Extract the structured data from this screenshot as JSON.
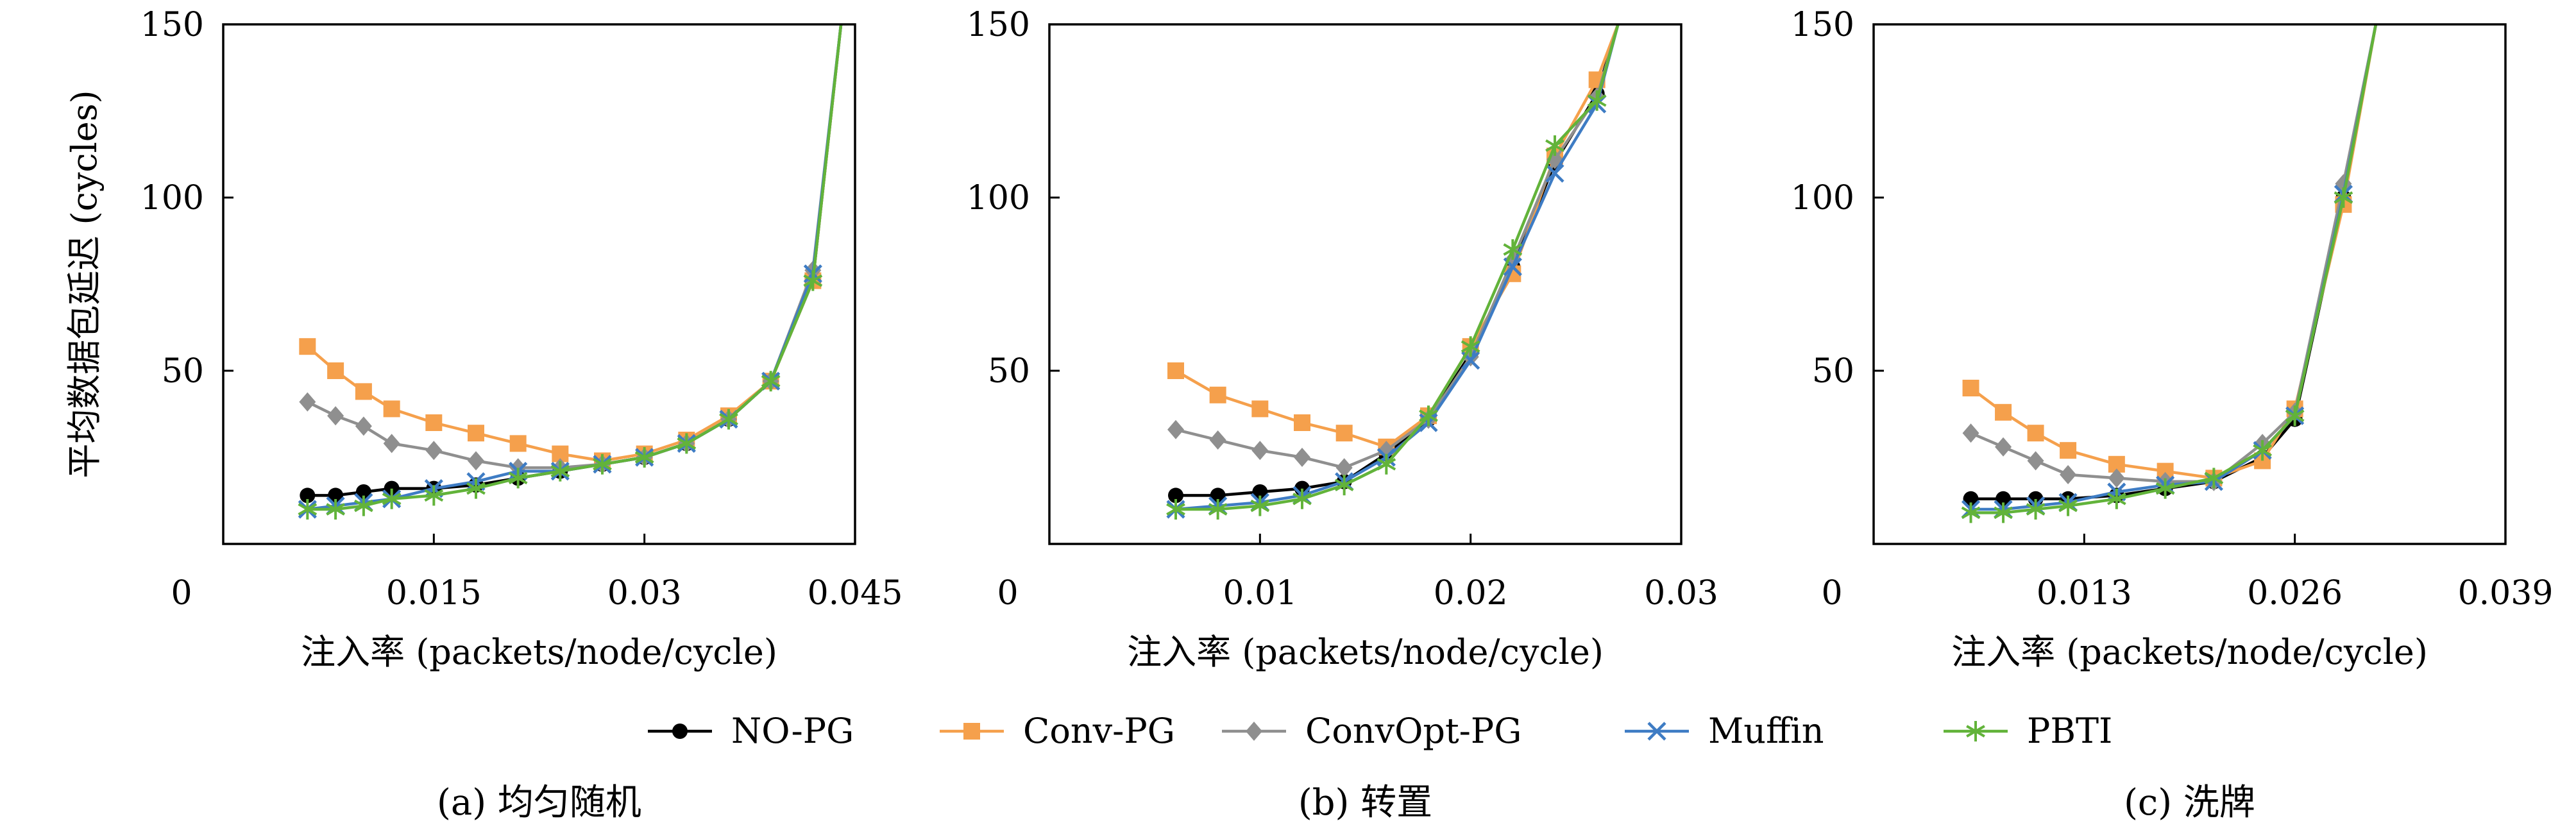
{
  "figure": {
    "legend": [
      {
        "name": "NO-PG",
        "color": "#000000",
        "marker": "circle"
      },
      {
        "name": "Conv-PG",
        "color": "#F5A04C",
        "marker": "square"
      },
      {
        "name": "ConvOpt-PG",
        "color": "#8F8F8F",
        "marker": "diamond"
      },
      {
        "name": "Muffin",
        "color": "#3E7CC4",
        "marker": "x"
      },
      {
        "name": "PBTI",
        "color": "#62B33A",
        "marker": "star"
      }
    ]
  },
  "chart_data": [
    {
      "type": "line",
      "caption": "(a) 均匀随机",
      "xlabel": "注入率 (packets/node/cycle)",
      "ylabel": "平均数据包延迟 (cycles)",
      "xlim": [
        0,
        0.045
      ],
      "ylim": [
        0,
        150
      ],
      "xticks": [
        0,
        0.015,
        0.03,
        0.045
      ],
      "xtick_labels": [
        "0",
        "0.015",
        "0.03",
        "0.045"
      ],
      "yticks": [
        50,
        100,
        150
      ],
      "ytick_labels": [
        "50",
        "100",
        "150"
      ],
      "series": [
        {
          "name": "NO-PG",
          "x": [
            0.006,
            0.008,
            0.01,
            0.012,
            0.015,
            0.018,
            0.021,
            0.024,
            0.027,
            0.03,
            0.033,
            0.036,
            0.039,
            0.042,
            0.044
          ],
          "y": [
            14,
            14,
            15,
            16,
            16,
            17,
            19,
            21,
            23,
            25,
            29,
            36,
            47,
            76,
            150
          ]
        },
        {
          "name": "Conv-PG",
          "x": [
            0.006,
            0.008,
            0.01,
            0.012,
            0.015,
            0.018,
            0.021,
            0.024,
            0.027,
            0.03,
            0.033,
            0.036,
            0.039,
            0.042,
            0.044
          ],
          "y": [
            57,
            50,
            44,
            39,
            35,
            32,
            29,
            26,
            24,
            26,
            30,
            37,
            47,
            76,
            150
          ]
        },
        {
          "name": "ConvOpt-PG",
          "x": [
            0.006,
            0.008,
            0.01,
            0.012,
            0.015,
            0.018,
            0.021,
            0.024,
            0.027,
            0.03,
            0.033,
            0.036,
            0.039,
            0.042,
            0.044
          ],
          "y": [
            41,
            37,
            34,
            29,
            27,
            24,
            22,
            22,
            23,
            25,
            29,
            36,
            47,
            79,
            150
          ]
        },
        {
          "name": "Muffin",
          "x": [
            0.006,
            0.008,
            0.01,
            0.012,
            0.015,
            0.018,
            0.021,
            0.024,
            0.027,
            0.03,
            0.033,
            0.036,
            0.039,
            0.042,
            0.044
          ],
          "y": [
            10,
            11,
            12,
            13,
            16,
            18,
            21,
            21,
            23,
            25,
            29,
            36,
            47,
            78,
            150
          ]
        },
        {
          "name": "PBTI",
          "x": [
            0.006,
            0.008,
            0.01,
            0.012,
            0.015,
            0.018,
            0.021,
            0.024,
            0.027,
            0.03,
            0.033,
            0.036,
            0.039,
            0.042,
            0.044
          ],
          "y": [
            10,
            10,
            11,
            13,
            14,
            16,
            19,
            21,
            23,
            25,
            29,
            36,
            47,
            76,
            150
          ]
        }
      ]
    },
    {
      "type": "line",
      "caption": "(b) 转置",
      "xlabel": "注入率 (packets/node/cycle)",
      "ylabel": "",
      "xlim": [
        0,
        0.03
      ],
      "ylim": [
        0,
        150
      ],
      "xticks": [
        0,
        0.01,
        0.02,
        0.03
      ],
      "xtick_labels": [
        "0",
        "0.01",
        "0.02",
        "0.03"
      ],
      "yticks": [
        50,
        100,
        150
      ],
      "ytick_labels": [
        "50",
        "100",
        "150"
      ],
      "series": [
        {
          "name": "NO-PG",
          "x": [
            0.006,
            0.008,
            0.01,
            0.012,
            0.014,
            0.016,
            0.018,
            0.02,
            0.022,
            0.024,
            0.026,
            0.027
          ],
          "y": [
            14,
            14,
            15,
            16,
            18,
            26,
            36,
            55,
            80,
            110,
            130,
            150
          ]
        },
        {
          "name": "Conv-PG",
          "x": [
            0.006,
            0.008,
            0.01,
            0.012,
            0.014,
            0.016,
            0.018,
            0.02,
            0.022,
            0.024,
            0.026,
            0.027
          ],
          "y": [
            50,
            43,
            39,
            35,
            32,
            28,
            37,
            57,
            78,
            112,
            134,
            150
          ]
        },
        {
          "name": "ConvOpt-PG",
          "x": [
            0.006,
            0.008,
            0.01,
            0.012,
            0.014,
            0.016,
            0.018,
            0.02,
            0.022,
            0.024,
            0.026,
            0.027
          ],
          "y": [
            33,
            30,
            27,
            25,
            22,
            27,
            36,
            54,
            82,
            111,
            129,
            150
          ]
        },
        {
          "name": "Muffin",
          "x": [
            0.006,
            0.008,
            0.01,
            0.012,
            0.014,
            0.016,
            0.018,
            0.02,
            0.022,
            0.024,
            0.026,
            0.027
          ],
          "y": [
            10,
            11,
            12,
            14,
            18,
            25,
            35,
            53,
            80,
            107,
            127,
            150
          ]
        },
        {
          "name": "PBTI",
          "x": [
            0.006,
            0.008,
            0.01,
            0.012,
            0.014,
            0.016,
            0.018,
            0.02,
            0.022,
            0.024,
            0.026,
            0.027
          ],
          "y": [
            10,
            10,
            11,
            13,
            17,
            23,
            37,
            57,
            85,
            115,
            128,
            150
          ]
        }
      ]
    },
    {
      "type": "line",
      "caption": "(c) 洗牌",
      "xlabel": "注入率 (packets/node/cycle)",
      "ylabel": "",
      "xlim": [
        0,
        0.039
      ],
      "ylim": [
        0,
        150
      ],
      "xticks": [
        0,
        0.013,
        0.026,
        0.039
      ],
      "xtick_labels": [
        "0",
        "0.013",
        "0.026",
        "0.039"
      ],
      "yticks": [
        50,
        100,
        150
      ],
      "ytick_labels": [
        "50",
        "100",
        "150"
      ],
      "series": [
        {
          "name": "NO-PG",
          "x": [
            0.006,
            0.008,
            0.01,
            0.012,
            0.015,
            0.018,
            0.021,
            0.024,
            0.026,
            0.029,
            0.031
          ],
          "y": [
            13,
            13,
            13,
            13,
            14,
            16,
            18,
            25,
            36,
            100,
            150
          ]
        },
        {
          "name": "Conv-PG",
          "x": [
            0.006,
            0.008,
            0.01,
            0.012,
            0.015,
            0.018,
            0.021,
            0.024,
            0.026,
            0.029,
            0.031
          ],
          "y": [
            45,
            38,
            32,
            27,
            23,
            21,
            19,
            24,
            39,
            98,
            150
          ]
        },
        {
          "name": "ConvOpt-PG",
          "x": [
            0.006,
            0.008,
            0.01,
            0.012,
            0.015,
            0.018,
            0.021,
            0.024,
            0.026,
            0.029,
            0.031
          ],
          "y": [
            32,
            28,
            24,
            20,
            19,
            18,
            18,
            29,
            38,
            104,
            150
          ]
        },
        {
          "name": "Muffin",
          "x": [
            0.006,
            0.008,
            0.01,
            0.012,
            0.015,
            0.018,
            0.021,
            0.024,
            0.026,
            0.029,
            0.031
          ],
          "y": [
            10,
            10,
            11,
            12,
            15,
            17,
            18,
            27,
            37,
            101,
            150
          ]
        },
        {
          "name": "PBTI",
          "x": [
            0.006,
            0.008,
            0.01,
            0.012,
            0.015,
            0.018,
            0.021,
            0.024,
            0.026,
            0.029,
            0.031
          ],
          "y": [
            9,
            9,
            10,
            11,
            13,
            16,
            19,
            27,
            37,
            100,
            150
          ]
        }
      ]
    }
  ]
}
